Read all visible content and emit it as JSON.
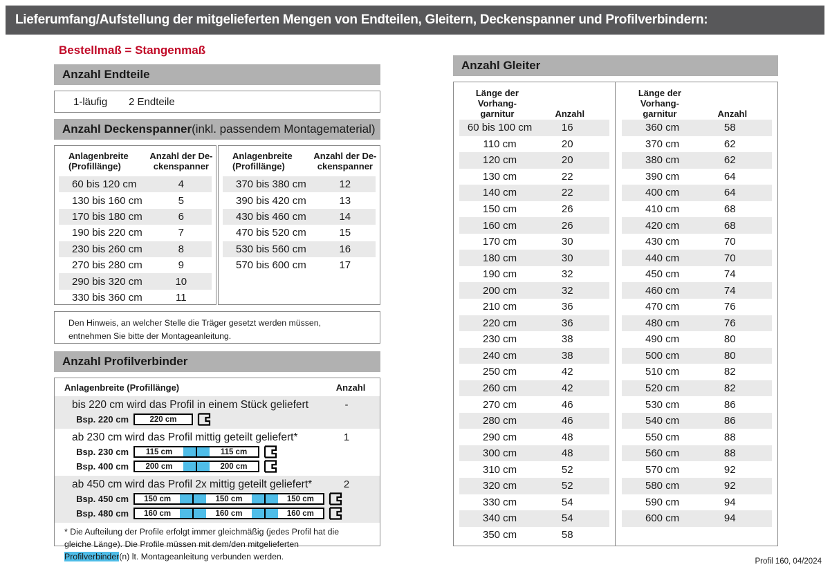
{
  "page": {
    "title": "Lieferumfang/Aufstellung der mitgelieferten Mengen von Endteilen, Gleitern, Deckenspanner und Profilverbindern:",
    "subtitle": "Bestellmaß = Stangenmaß",
    "footer": "Profil 160, 04/2024"
  },
  "colors": {
    "title_bar_bg": "#58585a",
    "section_bar_bg": "#b1b1b1",
    "row_stripe": "#e9e9e9",
    "accent_red": "#c10a27",
    "connector_blue": "#4fbde8"
  },
  "endteile": {
    "heading": "Anzahl Endteile",
    "row_label": "1-läufig",
    "row_value": "2 Endteile"
  },
  "deckenspanner": {
    "heading_bold": "Anzahl Deckenspanner",
    "heading_rest": " (inkl. passendem Montagematerial)",
    "col1": [
      "Anlagenbreite",
      "(Profillänge)"
    ],
    "col2": [
      "Anzahl der De-",
      "ckenspanner"
    ],
    "left_rows": [
      {
        "l": "60 bis 120 cm",
        "n": "4"
      },
      {
        "l": "130 bis 160 cm",
        "n": "5"
      },
      {
        "l": "170 bis 180 cm",
        "n": "6"
      },
      {
        "l": "190 bis 220 cm",
        "n": "7"
      },
      {
        "l": "230 bis 260 cm",
        "n": "8"
      },
      {
        "l": "270 bis 280 cm",
        "n": "9"
      },
      {
        "l": "290 bis 320 cm",
        "n": "10"
      },
      {
        "l": "330 bis 360 cm",
        "n": "11"
      }
    ],
    "right_rows": [
      {
        "l": "370 bis 380 cm",
        "n": "12"
      },
      {
        "l": "390 bis 420 cm",
        "n": "13"
      },
      {
        "l": "430 bis 460 cm",
        "n": "14"
      },
      {
        "l": "470 bis 520 cm",
        "n": "15"
      },
      {
        "l": "530 bis 560 cm",
        "n": "16"
      },
      {
        "l": "570 bis 600 cm",
        "n": "17"
      }
    ],
    "note": "Den Hinweis, an welcher Stelle die Träger gesetzt werden müssen, entnehmen Sie bitte der Montageanleitung."
  },
  "profilverbinder": {
    "heading": "Anzahl Profilverbinder",
    "col1_header": "Anlagenbreite (Profillänge)",
    "col2_header": "Anzahl",
    "sections": [
      {
        "text": "bis 220 cm wird das Profil in einem Stück geliefert",
        "anzahl": "-",
        "examples": [
          {
            "label": "Bsp. 220 cm",
            "segments": [
              "220 cm"
            ]
          }
        ]
      },
      {
        "text": "ab 230 cm wird das Profil mittig geteilt geliefert*",
        "anzahl": "1",
        "examples": [
          {
            "label": "Bsp. 230 cm",
            "segments": [
              "115 cm",
              "115 cm"
            ]
          },
          {
            "label": "Bsp. 400 cm",
            "segments": [
              "200 cm",
              "200 cm"
            ]
          }
        ]
      },
      {
        "text": "ab 450 cm wird das Profil 2x mittig geteilt geliefert*",
        "anzahl": "2",
        "examples": [
          {
            "label": "Bsp. 450 cm",
            "segments": [
              "150 cm",
              "150 cm",
              "150 cm"
            ]
          },
          {
            "label": "Bsp. 480 cm",
            "segments": [
              "160 cm",
              "160 cm",
              "160 cm"
            ]
          }
        ]
      }
    ],
    "footnote_before": "* Die Aufteilung der Profile erfolgt immer gleichmäßig (jedes Profil hat die gleiche Länge). Die Profile müssen mit dem/den mitgelieferten ",
    "footnote_highlight": "Profilverbinder",
    "footnote_after": "(n) lt. Montageanleitung verbunden werden."
  },
  "gleiter": {
    "heading": "Anzahl Gleiter",
    "col1": [
      "Länge der",
      "Vorhang-",
      "garnitur"
    ],
    "col2": "Anzahl",
    "left_rows": [
      {
        "l": "60 bis 100 cm",
        "n": "16"
      },
      {
        "l": "110 cm",
        "n": "20"
      },
      {
        "l": "120 cm",
        "n": "20"
      },
      {
        "l": "130 cm",
        "n": "22"
      },
      {
        "l": "140 cm",
        "n": "22"
      },
      {
        "l": "150 cm",
        "n": "26"
      },
      {
        "l": "160 cm",
        "n": "26"
      },
      {
        "l": "170 cm",
        "n": "30"
      },
      {
        "l": "180 cm",
        "n": "30"
      },
      {
        "l": "190 cm",
        "n": "32"
      },
      {
        "l": "200 cm",
        "n": "32"
      },
      {
        "l": "210 cm",
        "n": "36"
      },
      {
        "l": "220 cm",
        "n": "36"
      },
      {
        "l": "230 cm",
        "n": "38"
      },
      {
        "l": "240 cm",
        "n": "38"
      },
      {
        "l": "250 cm",
        "n": "42"
      },
      {
        "l": "260 cm",
        "n": "42"
      },
      {
        "l": "270 cm",
        "n": "46"
      },
      {
        "l": "280 cm",
        "n": "46"
      },
      {
        "l": "290 cm",
        "n": "48"
      },
      {
        "l": "300 cm",
        "n": "48"
      },
      {
        "l": "310 cm",
        "n": "52"
      },
      {
        "l": "320 cm",
        "n": "52"
      },
      {
        "l": "330 cm",
        "n": "54"
      },
      {
        "l": "340 cm",
        "n": "54"
      },
      {
        "l": "350 cm",
        "n": "58"
      }
    ],
    "right_rows": [
      {
        "l": "360 cm",
        "n": "58"
      },
      {
        "l": "370 cm",
        "n": "62"
      },
      {
        "l": "380 cm",
        "n": "62"
      },
      {
        "l": "390 cm",
        "n": "64"
      },
      {
        "l": "400 cm",
        "n": "64"
      },
      {
        "l": "410 cm",
        "n": "68"
      },
      {
        "l": "420 cm",
        "n": "68"
      },
      {
        "l": "430 cm",
        "n": "70"
      },
      {
        "l": "440 cm",
        "n": "70"
      },
      {
        "l": "450 cm",
        "n": "74"
      },
      {
        "l": "460 cm",
        "n": "74"
      },
      {
        "l": "470 cm",
        "n": "76"
      },
      {
        "l": "480 cm",
        "n": "76"
      },
      {
        "l": "490 cm",
        "n": "80"
      },
      {
        "l": "500 cm",
        "n": "80"
      },
      {
        "l": "510 cm",
        "n": "82"
      },
      {
        "l": "520 cm",
        "n": "82"
      },
      {
        "l": "530 cm",
        "n": "86"
      },
      {
        "l": "540 cm",
        "n": "86"
      },
      {
        "l": "550 cm",
        "n": "88"
      },
      {
        "l": "560 cm",
        "n": "88"
      },
      {
        "l": "570 cm",
        "n": "92"
      },
      {
        "l": "580 cm",
        "n": "92"
      },
      {
        "l": "590 cm",
        "n": "94"
      },
      {
        "l": "600 cm",
        "n": "94"
      }
    ]
  }
}
